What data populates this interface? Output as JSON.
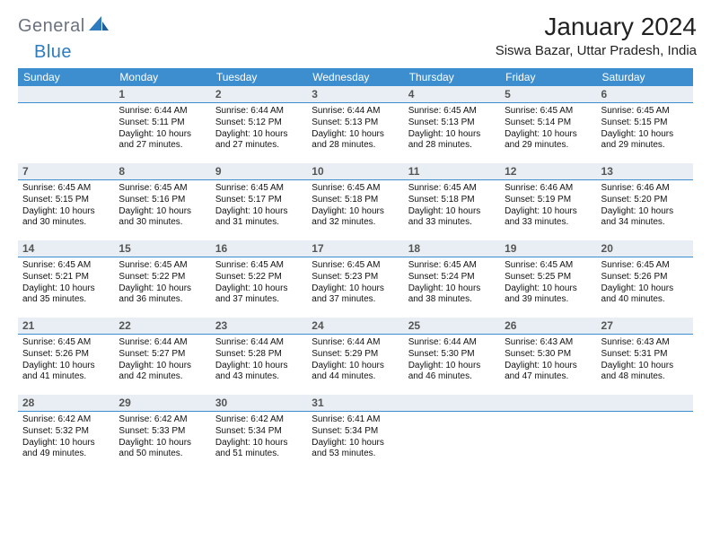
{
  "brand": {
    "part1": "General",
    "part2": "Blue"
  },
  "title": "January 2024",
  "location": "Siswa Bazar, Uttar Pradesh, India",
  "colors": {
    "header_bg": "#3d8ecf",
    "header_text": "#ffffff",
    "daynum_bg": "#e8eef3",
    "daynum_border": "#3d8ecf",
    "logo_gray": "#6b7280",
    "logo_blue": "#2e7bbf",
    "page_bg": "#ffffff",
    "body_text": "#111111"
  },
  "typography": {
    "title_fontsize": 28,
    "location_fontsize": 15,
    "header_fontsize": 12,
    "daynum_fontsize": 12,
    "cell_fontsize": 10
  },
  "calendar": {
    "columns": [
      "Sunday",
      "Monday",
      "Tuesday",
      "Wednesday",
      "Thursday",
      "Friday",
      "Saturday"
    ],
    "leading_blanks": 1,
    "days": [
      {
        "n": 1,
        "sunrise": "6:44 AM",
        "sunset": "5:11 PM",
        "daylight": "10 hours and 27 minutes."
      },
      {
        "n": 2,
        "sunrise": "6:44 AM",
        "sunset": "5:12 PM",
        "daylight": "10 hours and 27 minutes."
      },
      {
        "n": 3,
        "sunrise": "6:44 AM",
        "sunset": "5:13 PM",
        "daylight": "10 hours and 28 minutes."
      },
      {
        "n": 4,
        "sunrise": "6:45 AM",
        "sunset": "5:13 PM",
        "daylight": "10 hours and 28 minutes."
      },
      {
        "n": 5,
        "sunrise": "6:45 AM",
        "sunset": "5:14 PM",
        "daylight": "10 hours and 29 minutes."
      },
      {
        "n": 6,
        "sunrise": "6:45 AM",
        "sunset": "5:15 PM",
        "daylight": "10 hours and 29 minutes."
      },
      {
        "n": 7,
        "sunrise": "6:45 AM",
        "sunset": "5:15 PM",
        "daylight": "10 hours and 30 minutes."
      },
      {
        "n": 8,
        "sunrise": "6:45 AM",
        "sunset": "5:16 PM",
        "daylight": "10 hours and 30 minutes."
      },
      {
        "n": 9,
        "sunrise": "6:45 AM",
        "sunset": "5:17 PM",
        "daylight": "10 hours and 31 minutes."
      },
      {
        "n": 10,
        "sunrise": "6:45 AM",
        "sunset": "5:18 PM",
        "daylight": "10 hours and 32 minutes."
      },
      {
        "n": 11,
        "sunrise": "6:45 AM",
        "sunset": "5:18 PM",
        "daylight": "10 hours and 33 minutes."
      },
      {
        "n": 12,
        "sunrise": "6:46 AM",
        "sunset": "5:19 PM",
        "daylight": "10 hours and 33 minutes."
      },
      {
        "n": 13,
        "sunrise": "6:46 AM",
        "sunset": "5:20 PM",
        "daylight": "10 hours and 34 minutes."
      },
      {
        "n": 14,
        "sunrise": "6:45 AM",
        "sunset": "5:21 PM",
        "daylight": "10 hours and 35 minutes."
      },
      {
        "n": 15,
        "sunrise": "6:45 AM",
        "sunset": "5:22 PM",
        "daylight": "10 hours and 36 minutes."
      },
      {
        "n": 16,
        "sunrise": "6:45 AM",
        "sunset": "5:22 PM",
        "daylight": "10 hours and 37 minutes."
      },
      {
        "n": 17,
        "sunrise": "6:45 AM",
        "sunset": "5:23 PM",
        "daylight": "10 hours and 37 minutes."
      },
      {
        "n": 18,
        "sunrise": "6:45 AM",
        "sunset": "5:24 PM",
        "daylight": "10 hours and 38 minutes."
      },
      {
        "n": 19,
        "sunrise": "6:45 AM",
        "sunset": "5:25 PM",
        "daylight": "10 hours and 39 minutes."
      },
      {
        "n": 20,
        "sunrise": "6:45 AM",
        "sunset": "5:26 PM",
        "daylight": "10 hours and 40 minutes."
      },
      {
        "n": 21,
        "sunrise": "6:45 AM",
        "sunset": "5:26 PM",
        "daylight": "10 hours and 41 minutes."
      },
      {
        "n": 22,
        "sunrise": "6:44 AM",
        "sunset": "5:27 PM",
        "daylight": "10 hours and 42 minutes."
      },
      {
        "n": 23,
        "sunrise": "6:44 AM",
        "sunset": "5:28 PM",
        "daylight": "10 hours and 43 minutes."
      },
      {
        "n": 24,
        "sunrise": "6:44 AM",
        "sunset": "5:29 PM",
        "daylight": "10 hours and 44 minutes."
      },
      {
        "n": 25,
        "sunrise": "6:44 AM",
        "sunset": "5:30 PM",
        "daylight": "10 hours and 46 minutes."
      },
      {
        "n": 26,
        "sunrise": "6:43 AM",
        "sunset": "5:30 PM",
        "daylight": "10 hours and 47 minutes."
      },
      {
        "n": 27,
        "sunrise": "6:43 AM",
        "sunset": "5:31 PM",
        "daylight": "10 hours and 48 minutes."
      },
      {
        "n": 28,
        "sunrise": "6:42 AM",
        "sunset": "5:32 PM",
        "daylight": "10 hours and 49 minutes."
      },
      {
        "n": 29,
        "sunrise": "6:42 AM",
        "sunset": "5:33 PM",
        "daylight": "10 hours and 50 minutes."
      },
      {
        "n": 30,
        "sunrise": "6:42 AM",
        "sunset": "5:34 PM",
        "daylight": "10 hours and 51 minutes."
      },
      {
        "n": 31,
        "sunrise": "6:41 AM",
        "sunset": "5:34 PM",
        "daylight": "10 hours and 53 minutes."
      }
    ]
  },
  "labels": {
    "sunrise": "Sunrise:",
    "sunset": "Sunset:",
    "daylight": "Daylight:"
  }
}
